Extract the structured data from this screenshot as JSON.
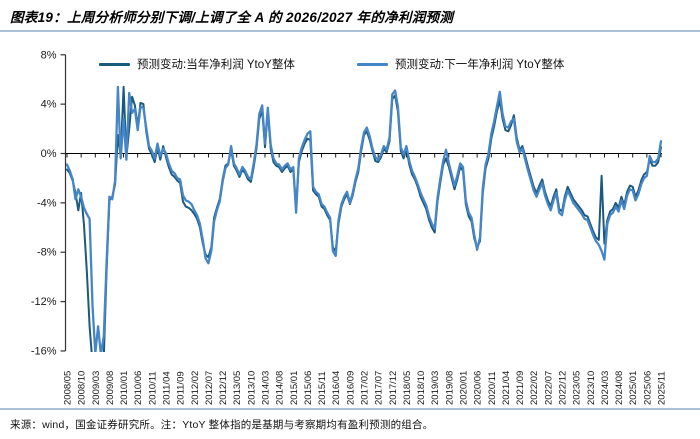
{
  "title": "图表19：上周分析师分别下调/上调了全 A 的 2026/2027 年的净利润预测",
  "footer": "来源：wind，国金证券研究所。注：YtoY 整体指的是基期与考察期均有盈利预测的组合。",
  "chart_data": {
    "type": "line",
    "title": "",
    "xlabel": "",
    "ylabel": "",
    "ylim": [
      -16,
      8
    ],
    "yticks": [
      8,
      4,
      0,
      -4,
      -8,
      -12,
      -16
    ],
    "ytick_suffix": "%",
    "grid": false,
    "legend_position": "top-inside",
    "x_start": "2008/05",
    "x_end": "2025/11",
    "x_tick_step_months": 5,
    "points_per_series": 211,
    "x_tick_labels": [
      "2008/05",
      "2008/10",
      "2009/03",
      "2009/08",
      "2010/01",
      "2010/06",
      "2010/11",
      "2011/04",
      "2011/09",
      "2012/02",
      "2012/07",
      "2012/12",
      "2013/05",
      "2013/10",
      "2014/03",
      "2014/08",
      "2015/01",
      "2015/06",
      "2015/11",
      "2016/04",
      "2016/09",
      "2017/02",
      "2017/07",
      "2017/12",
      "2018/05",
      "2018/10",
      "2019/03",
      "2019/08",
      "2020/01",
      "2020/06",
      "2020/11",
      "2021/04",
      "2021/09",
      "2022/02",
      "2022/07",
      "2022/12",
      "2023/05",
      "2023/10",
      "2024/03",
      "2024/08",
      "2025/01",
      "2025/06",
      "2025/11"
    ],
    "axis_color": "#333333",
    "zero_line_color": "#000000",
    "series": [
      {
        "name": "预测变动:当年净利润 YtoY整体",
        "color": "#1B5A7D",
        "values": [
          -1.3,
          -1.6,
          -2.2,
          -3.2,
          -4.6,
          -3.2,
          -5.8,
          -9.5,
          -14.0,
          -17.0,
          -17.8,
          -17.2,
          -17.5,
          -16.5,
          -9.5,
          -3.8,
          -3.5,
          -2.5,
          1.5,
          -0.2,
          5.4,
          -0.3,
          2.0,
          4.6,
          3.9,
          2.2,
          4.1,
          4.0,
          1.8,
          0.4,
          -0.1,
          -0.7,
          0.5,
          -0.5,
          0.6,
          -0.3,
          -1.1,
          -1.7,
          -1.9,
          -2.2,
          -2.4,
          -3.9,
          -4.3,
          -4.4,
          -4.6,
          -4.9,
          -5.3,
          -6.0,
          -7.3,
          -8.2,
          -8.4,
          -7.6,
          -5.2,
          -4.4,
          -3.7,
          -2.1,
          -1.0,
          -0.8,
          0.3,
          -1.0,
          -1.4,
          -1.9,
          -1.3,
          -1.6,
          -2.1,
          -2.3,
          -1.1,
          0.4,
          2.8,
          3.5,
          0.5,
          3.4,
          0.4,
          -0.7,
          -1.0,
          -1.1,
          -1.5,
          -1.2,
          -1.0,
          -1.5,
          -1.3,
          -4.4,
          -0.7,
          0.2,
          0.8,
          1.2,
          1.1,
          -3.0,
          -3.3,
          -3.5,
          -4.3,
          -4.5,
          -5.0,
          -5.4,
          -7.6,
          -7.9,
          -5.7,
          -4.3,
          -3.7,
          -3.3,
          -4.1,
          -3.4,
          -2.3,
          -1.5,
          0.2,
          1.5,
          1.8,
          1.1,
          0.2,
          -0.6,
          -0.7,
          -0.3,
          0.4,
          0.1,
          1.0,
          4.4,
          4.7,
          3.4,
          0.2,
          -0.4,
          0.4,
          -0.9,
          -1.7,
          -2.1,
          -2.7,
          -3.5,
          -4.0,
          -4.5,
          -5.4,
          -6.0,
          -6.4,
          -3.9,
          -2.3,
          -0.9,
          -0.4,
          -1.1,
          -2.0,
          -2.9,
          -2.1,
          -1.1,
          -1.4,
          -4.1,
          -5.1,
          -5.5,
          -6.9,
          -7.6,
          -7.1,
          -3.2,
          -1.2,
          -0.4,
          1.2,
          2.2,
          3.4,
          4.3,
          2.8,
          1.9,
          1.8,
          2.3,
          3.1,
          1.3,
          0.3,
          0.6,
          -0.2,
          -1.1,
          -1.9,
          -2.7,
          -3.2,
          -2.6,
          -2.1,
          -3.1,
          -3.8,
          -4.3,
          -3.5,
          -2.9,
          -4.5,
          -4.7,
          -3.5,
          -2.7,
          -3.2,
          -3.7,
          -4.0,
          -4.3,
          -4.6,
          -5.0,
          -5.1,
          -5.7,
          -6.3,
          -6.8,
          -7.0,
          -1.8,
          -7.3,
          -5.4,
          -4.7,
          -4.5,
          -4.0,
          -4.4,
          -3.5,
          -4.2,
          -3.1,
          -2.6,
          -2.7,
          -3.5,
          -3.0,
          -2.2,
          -1.7,
          -1.5,
          -0.5,
          -1.0,
          -1.0,
          -0.7,
          0.5
        ]
      },
      {
        "name": "预测变动:下一年净利润 YtoY整体",
        "color": "#4786C6",
        "values": [
          -0.9,
          -1.4,
          -2.1,
          -3.7,
          -2.9,
          -3.5,
          -4.4,
          -4.9,
          -5.3,
          -12.3,
          -16.2,
          -14.0,
          -16.3,
          -14.8,
          -8.8,
          -3.5,
          -3.7,
          -2.2,
          5.4,
          -0.4,
          2.8,
          -0.5,
          4.9,
          3.3,
          3.6,
          1.9,
          3.8,
          3.7,
          2.1,
          0.6,
          0.2,
          -0.4,
          0.8,
          -0.2,
          0.4,
          0.0,
          -0.8,
          -1.4,
          -1.6,
          -2.0,
          -2.1,
          -3.4,
          -3.8,
          -3.9,
          -4.1,
          -4.6,
          -5.0,
          -5.7,
          -7.0,
          -8.5,
          -8.9,
          -7.9,
          -5.5,
          -4.6,
          -3.9,
          -2.3,
          -1.2,
          -0.9,
          0.6,
          -0.8,
          -1.2,
          -1.7,
          -1.1,
          -1.4,
          -1.9,
          -2.1,
          -0.8,
          0.7,
          3.2,
          3.9,
          0.8,
          3.7,
          0.7,
          -0.4,
          -0.8,
          -0.9,
          -1.3,
          -1.0,
          -0.8,
          -1.3,
          -1.1,
          -4.8,
          -0.4,
          0.5,
          1.1,
          1.6,
          1.8,
          -2.7,
          -3.1,
          -3.3,
          -4.1,
          -4.3,
          -4.8,
          -5.2,
          -7.9,
          -8.3,
          -5.4,
          -4.1,
          -3.5,
          -3.1,
          -4.0,
          -3.2,
          -2.1,
          -1.2,
          0.5,
          1.7,
          2.1,
          1.4,
          0.4,
          -0.3,
          -0.5,
          -0.1,
          0.6,
          0.3,
          1.3,
          4.8,
          5.1,
          3.8,
          0.5,
          -0.1,
          0.6,
          -0.6,
          -1.4,
          -1.9,
          -2.5,
          -3.2,
          -3.7,
          -4.2,
          -5.1,
          -5.7,
          -6.1,
          -3.6,
          -2.0,
          -0.6,
          0.3,
          -0.8,
          -1.7,
          -2.6,
          -1.8,
          -0.8,
          -1.1,
          -3.8,
          -4.8,
          -5.2,
          -6.6,
          -7.8,
          -6.8,
          -2.8,
          -0.9,
          0.0,
          1.6,
          2.6,
          3.8,
          5.0,
          3.2,
          2.2,
          2.1,
          2.6,
          2.8,
          1.0,
          0.1,
          0.4,
          -0.5,
          -1.4,
          -2.2,
          -3.0,
          -3.5,
          -2.9,
          -2.4,
          -3.4,
          -4.1,
          -4.6,
          -3.8,
          -3.2,
          -4.8,
          -5.0,
          -3.8,
          -3.0,
          -3.5,
          -4.0,
          -4.3,
          -4.6,
          -4.9,
          -5.3,
          -5.4,
          -6.0,
          -6.6,
          -7.1,
          -7.4,
          -7.9,
          -8.6,
          -5.7,
          -5.0,
          -4.8,
          -4.3,
          -4.7,
          -3.8,
          -4.5,
          -3.4,
          -2.9,
          -3.0,
          -3.8,
          -3.3,
          -2.5,
          -2.0,
          -1.8,
          -0.2,
          -0.7,
          -0.7,
          -0.4,
          1.0
        ]
      }
    ]
  }
}
